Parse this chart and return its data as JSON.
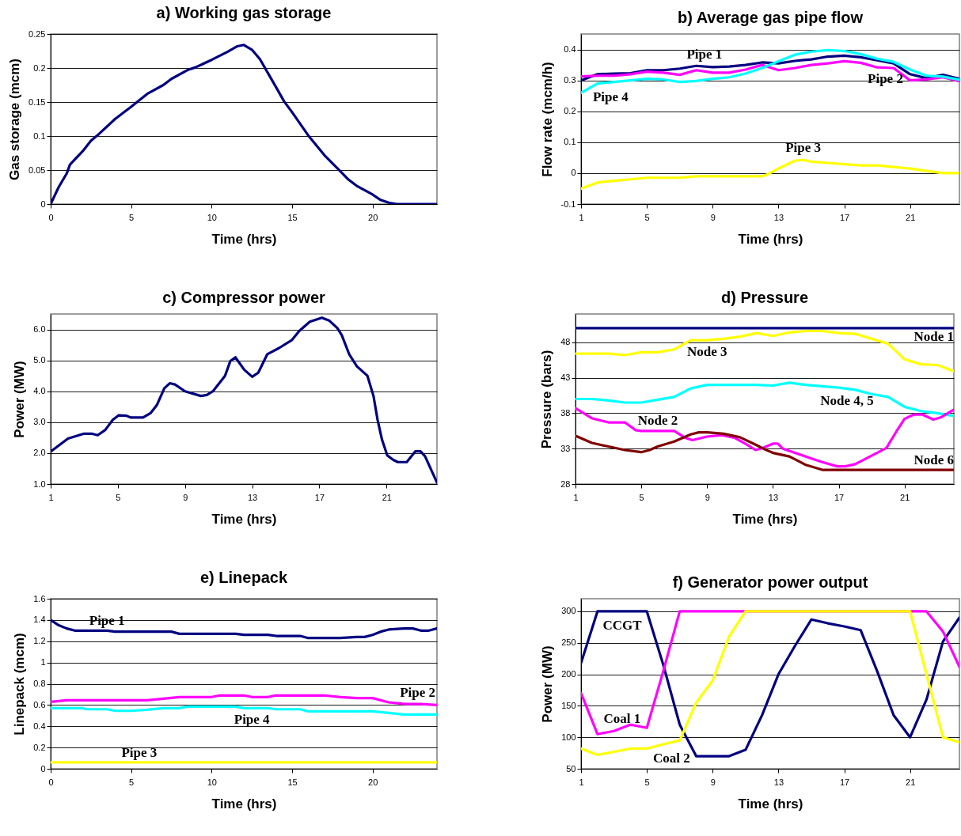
{
  "chart_data": [
    {
      "type": "line",
      "title": "a) Working gas storage",
      "xlabel": "Time (hrs)",
      "ylabel": "Gas storage (mcm)",
      "xlim": [
        0,
        24
      ],
      "xticks": [
        0,
        5,
        10,
        15,
        20
      ],
      "ylim": [
        0,
        0.25
      ],
      "yticks": [
        0,
        0.05,
        0.1,
        0.15,
        0.2,
        0.25
      ],
      "grid": "y",
      "color": "#000080",
      "x": [
        0,
        0.5,
        1,
        1.2,
        2,
        2.5,
        3,
        4,
        5,
        6,
        7,
        7.5,
        8.5,
        9,
        10,
        11,
        11.6,
        12,
        12.5,
        13,
        14,
        14.5,
        15,
        16,
        17,
        18,
        18.5,
        19,
        20,
        20.5,
        21,
        21.5,
        24
      ],
      "values": [
        0,
        0.025,
        0.045,
        0.058,
        0.078,
        0.093,
        0.103,
        0.125,
        0.143,
        0.162,
        0.175,
        0.184,
        0.197,
        0.201,
        0.212,
        0.224,
        0.232,
        0.234,
        0.227,
        0.213,
        0.172,
        0.151,
        0.135,
        0.101,
        0.072,
        0.048,
        0.036,
        0.027,
        0.014,
        0.006,
        0.002,
        0,
        0
      ]
    },
    {
      "type": "line",
      "title": "b) Average gas pipe flow",
      "xlabel": "Time (hrs)",
      "ylabel": "Flow rate (mcm/h)",
      "xlim": [
        1,
        24
      ],
      "xticks": [
        1,
        5,
        9,
        13,
        17,
        21
      ],
      "ylim": [
        -0.1,
        0.45
      ],
      "yticks": [
        -0.1,
        0,
        0.1,
        0.2,
        0.3,
        0.4
      ],
      "grid": "y",
      "series": [
        {
          "name": "Pipe 1",
          "color": "#000080",
          "x": [
            1,
            2,
            3,
            4,
            5,
            6,
            7,
            8,
            9,
            10,
            11,
            12,
            13,
            14,
            15,
            16,
            17,
            18,
            19,
            20,
            21,
            22,
            23,
            24
          ],
          "values": [
            0.3,
            0.32,
            0.322,
            0.323,
            0.333,
            0.333,
            0.338,
            0.347,
            0.343,
            0.345,
            0.35,
            0.358,
            0.355,
            0.363,
            0.368,
            0.377,
            0.38,
            0.375,
            0.365,
            0.355,
            0.32,
            0.307,
            0.318,
            0.305
          ]
        },
        {
          "name": "Pipe 2",
          "color": "#ff00ff",
          "x": [
            1,
            2,
            3,
            4,
            5,
            6,
            7,
            8,
            9,
            10,
            11,
            12,
            13,
            14,
            15,
            16,
            17,
            18,
            19,
            20,
            21,
            22,
            23,
            24
          ],
          "values": [
            0.313,
            0.315,
            0.315,
            0.32,
            0.328,
            0.325,
            0.318,
            0.333,
            0.325,
            0.325,
            0.335,
            0.35,
            0.333,
            0.34,
            0.35,
            0.355,
            0.362,
            0.357,
            0.342,
            0.34,
            0.3,
            0.303,
            0.31,
            0.297
          ]
        },
        {
          "name": "Pipe 3",
          "color": "#ffff00",
          "x": [
            1,
            2,
            3,
            4,
            5,
            6,
            7,
            8,
            9,
            10,
            11,
            12,
            12.3,
            13,
            14,
            14.5,
            15,
            16,
            17,
            18,
            19,
            20,
            21,
            22,
            23,
            24
          ],
          "values": [
            -0.05,
            -0.03,
            -0.025,
            -0.02,
            -0.015,
            -0.015,
            -0.015,
            -0.01,
            -0.01,
            -0.01,
            -0.01,
            -0.01,
            -0.005,
            0.015,
            0.04,
            0.043,
            0.037,
            0.033,
            0.029,
            0.025,
            0.025,
            0.02,
            0.015,
            0.007,
            0,
            0
          ]
        },
        {
          "name": "Pipe 4",
          "color": "#00ffff",
          "x": [
            1,
            2,
            3,
            4,
            5,
            6,
            7,
            8,
            9,
            10,
            11,
            12,
            13,
            14,
            15,
            16,
            17,
            18,
            19,
            20,
            21,
            22,
            23,
            24
          ],
          "values": [
            0.26,
            0.29,
            0.295,
            0.3,
            0.305,
            0.303,
            0.295,
            0.298,
            0.305,
            0.31,
            0.322,
            0.34,
            0.362,
            0.383,
            0.393,
            0.398,
            0.395,
            0.385,
            0.37,
            0.36,
            0.335,
            0.315,
            0.312,
            0.302
          ]
        }
      ]
    },
    {
      "type": "line",
      "title": "c) Compressor power",
      "xlabel": "Time (hrs)",
      "ylabel": "Power (MW)",
      "xlim": [
        1,
        24
      ],
      "xticks": [
        1,
        5,
        9,
        13,
        17,
        21
      ],
      "ylim": [
        1,
        6.5
      ],
      "yticks": [
        {
          "value": 1,
          "label": "1.0"
        },
        {
          "value": 2,
          "label": "2.0"
        },
        {
          "value": 3,
          "label": "3.0"
        },
        {
          "value": 4,
          "label": "4.0"
        },
        {
          "value": 5,
          "label": "5.0"
        },
        {
          "value": 6,
          "label": "6.0"
        }
      ],
      "grid": "y",
      "color": "#000080",
      "x": [
        1,
        2.03,
        2.99,
        3.44,
        3.8,
        4.25,
        4.7,
        5.04,
        5.51,
        5.78,
        6.5,
        6.96,
        7.32,
        7.77,
        8.09,
        8.4,
        9,
        9.94,
        10.3,
        10.66,
        11.38,
        11.7,
        12,
        12.52,
        13,
        13.36,
        13.9,
        14.6,
        15.35,
        15.8,
        16.43,
        17.15,
        17.6,
        18.06,
        18.33,
        18.78,
        19.23,
        19.86,
        20.22,
        20.46,
        20.73,
        21.04,
        21.4,
        21.67,
        22.2,
        22.72,
        23.02,
        23.29,
        24
      ],
      "values": [
        2.05,
        2.47,
        2.63,
        2.63,
        2.58,
        2.75,
        3.08,
        3.22,
        3.21,
        3.15,
        3.15,
        3.3,
        3.55,
        4.1,
        4.26,
        4.22,
        4.0,
        3.85,
        3.88,
        4.0,
        4.5,
        4.98,
        5.1,
        4.7,
        4.47,
        4.6,
        5.2,
        5.4,
        5.65,
        5.95,
        6.25,
        6.38,
        6.28,
        6.05,
        5.82,
        5.19,
        4.81,
        4.5,
        3.85,
        3.09,
        2.43,
        1.93,
        1.78,
        1.71,
        1.71,
        2.06,
        2.06,
        1.9,
        1.05
      ]
    },
    {
      "type": "line",
      "title": "d) Pressure",
      "xlabel": "Time (hrs)",
      "ylabel": "Pressure (bars)",
      "xlim": [
        1,
        24
      ],
      "xticks": [
        1,
        5,
        9,
        13,
        17,
        21
      ],
      "ylim": [
        28,
        52
      ],
      "yticks": [
        28,
        33,
        38,
        43,
        48
      ],
      "grid": "y",
      "series": [
        {
          "name": "Node 1",
          "color": "#000080",
          "x": [
            1,
            24
          ],
          "values": [
            50,
            50
          ]
        },
        {
          "name": "Node 3",
          "color": "#ffff00",
          "x": [
            1,
            2,
            3,
            4,
            5,
            6,
            7,
            8,
            9,
            10,
            11,
            12,
            13,
            14,
            15,
            16,
            17,
            18,
            19,
            20,
            21,
            22,
            23,
            24
          ],
          "values": [
            46.4,
            46.4,
            46.4,
            46.2,
            46.6,
            46.6,
            47.0,
            48.3,
            48.3,
            48.5,
            48.8,
            49.3,
            48.9,
            49.4,
            49.6,
            49.6,
            49.3,
            49.2,
            48.5,
            47.8,
            45.6,
            44.9,
            44.8,
            43.9
          ]
        },
        {
          "name": "Node 4, 5",
          "color": "#00ffff",
          "x": [
            1,
            2,
            3,
            4,
            5,
            6,
            7,
            8,
            9,
            10,
            11,
            12,
            13,
            14,
            15,
            16,
            17,
            18,
            19,
            20,
            21,
            22,
            23,
            24
          ],
          "values": [
            40.0,
            40.0,
            39.8,
            39.5,
            39.5,
            39.9,
            40.3,
            41.5,
            42.0,
            42.0,
            42.0,
            42.0,
            41.9,
            42.3,
            42.0,
            41.8,
            41.6,
            41.3,
            40.7,
            40.3,
            38.9,
            38.3,
            38.0,
            37.6
          ]
        },
        {
          "name": "Node 2",
          "color": "#ff00ff",
          "x": [
            1,
            1.98,
            3,
            4,
            4.66,
            5,
            7,
            7.7,
            8.1,
            9,
            9.9,
            10.7,
            11.4,
            11.95,
            12.4,
            13,
            13.3,
            13.6,
            15.1,
            16,
            16.9,
            17.4,
            18,
            19,
            19.9,
            20.5,
            21,
            21.55,
            22.1,
            22.75,
            23.2,
            24
          ],
          "values": [
            38.7,
            37.3,
            36.7,
            36.7,
            35.6,
            35.5,
            35.5,
            34.5,
            34.2,
            34.7,
            34.9,
            34.5,
            33.6,
            32.8,
            33.1,
            33.7,
            33.7,
            33.0,
            31.8,
            31.1,
            30.5,
            30.5,
            30.8,
            32.0,
            33.1,
            35.4,
            37.2,
            37.8,
            37.8,
            37.1,
            37.4,
            38.5
          ]
        },
        {
          "name": "Node 6",
          "color": "#800000",
          "x": [
            1,
            2,
            3,
            4,
            5,
            5.5,
            6,
            7,
            8,
            8.5,
            9,
            10,
            11,
            12,
            12.5,
            13,
            14,
            14.5,
            15,
            16,
            24
          ],
          "values": [
            34.8,
            33.8,
            33.3,
            32.8,
            32.5,
            32.8,
            33.3,
            34.0,
            35.0,
            35.3,
            35.3,
            35.1,
            34.6,
            33.5,
            32.9,
            32.4,
            31.9,
            31.3,
            30.7,
            30.0,
            30.0
          ]
        }
      ]
    },
    {
      "type": "line",
      "title": "e) Linepack",
      "xlabel": "Time (hrs)",
      "ylabel": "Linepack (mcm)",
      "xlim": [
        0,
        24
      ],
      "xticks": [
        0,
        5,
        10,
        15,
        20
      ],
      "ylim": [
        0,
        1.6
      ],
      "yticks": [
        0,
        0.2,
        0.4,
        0.6,
        0.8,
        1,
        1.2,
        1.4,
        1.6
      ],
      "grid": "y",
      "series": [
        {
          "name": "Pipe 1",
          "color": "#000080",
          "x": [
            0,
            0.5,
            1,
            1.5,
            3.5,
            4,
            7.5,
            8,
            11.5,
            12,
            13.5,
            14,
            15.5,
            16,
            18,
            19,
            19.5,
            20,
            20.5,
            21,
            22,
            22.5,
            23,
            23.5,
            24
          ],
          "values": [
            1.4,
            1.35,
            1.32,
            1.3,
            1.3,
            1.29,
            1.29,
            1.27,
            1.27,
            1.26,
            1.26,
            1.25,
            1.25,
            1.23,
            1.23,
            1.24,
            1.24,
            1.26,
            1.29,
            1.31,
            1.32,
            1.32,
            1.3,
            1.3,
            1.32
          ]
        },
        {
          "name": "Pipe 2",
          "color": "#ff00ff",
          "x": [
            0,
            1,
            6,
            7,
            8,
            10,
            10.5,
            12,
            12.5,
            13.5,
            14,
            17,
            18,
            19,
            20,
            21,
            22,
            23,
            24
          ],
          "values": [
            0.63,
            0.645,
            0.645,
            0.66,
            0.675,
            0.675,
            0.69,
            0.69,
            0.675,
            0.675,
            0.69,
            0.69,
            0.675,
            0.665,
            0.665,
            0.625,
            0.61,
            0.61,
            0.6
          ]
        },
        {
          "name": "Pipe 3",
          "color": "#ffff00",
          "x": [
            0,
            24
          ],
          "values": [
            0.06,
            0.06
          ]
        },
        {
          "name": "Pipe 4",
          "color": "#00ffff",
          "x": [
            0,
            2,
            2.2,
            3.5,
            4,
            5,
            6,
            7,
            8,
            8.5,
            11.5,
            12,
            13.5,
            14,
            15.5,
            16,
            20,
            21,
            22,
            24
          ],
          "values": [
            0.57,
            0.57,
            0.56,
            0.56,
            0.545,
            0.545,
            0.555,
            0.57,
            0.57,
            0.585,
            0.585,
            0.57,
            0.57,
            0.56,
            0.56,
            0.54,
            0.54,
            0.525,
            0.51,
            0.51
          ]
        }
      ]
    },
    {
      "type": "line",
      "title": "f) Generator power output",
      "xlabel": "Time (hrs)",
      "ylabel": "Power (MW)",
      "xlim": [
        1,
        24
      ],
      "xticks": [
        1,
        5,
        9,
        13,
        17,
        21
      ],
      "ylim": [
        50,
        320
      ],
      "yticks": [
        50,
        100,
        150,
        200,
        250,
        300
      ],
      "grid": "y",
      "series": [
        {
          "name": "CCGT",
          "color": "#000080",
          "x": [
            1,
            2,
            3,
            4,
            5,
            6,
            7,
            8,
            9,
            10,
            11,
            12,
            13,
            14,
            15,
            16,
            17,
            18,
            19,
            20,
            21,
            22,
            23,
            24
          ],
          "values": [
            218,
            300,
            300,
            300,
            300,
            215,
            120,
            70,
            70,
            70,
            80,
            135,
            200,
            245,
            287,
            281,
            276,
            270,
            205,
            135,
            100,
            160,
            252,
            290
          ]
        },
        {
          "name": "Coal 1",
          "color": "#ff00ff",
          "x": [
            1,
            2,
            3,
            4,
            5,
            6,
            7,
            8,
            9,
            10,
            11,
            12,
            13,
            14,
            15,
            16,
            17,
            18,
            19,
            20,
            21,
            22,
            23,
            24
          ],
          "values": [
            170,
            105,
            110,
            120,
            115,
            205,
            300,
            300,
            300,
            300,
            300,
            null,
            null,
            null,
            null,
            null,
            null,
            null,
            null,
            null,
            300,
            300,
            268,
            212
          ]
        },
        {
          "name": "Coal 2",
          "color": "#ffff00",
          "x": [
            1,
            2,
            3,
            4,
            5,
            6,
            7,
            8,
            9,
            10,
            11,
            12,
            13,
            14,
            15,
            16,
            17,
            18,
            19,
            20,
            21,
            22,
            23,
            24
          ],
          "values": [
            82,
            72,
            77,
            82,
            82,
            89,
            95,
            155,
            190,
            260,
            300,
            300,
            300,
            300,
            300,
            300,
            300,
            300,
            300,
            300,
            300,
            200,
            100,
            92
          ]
        }
      ]
    }
  ]
}
